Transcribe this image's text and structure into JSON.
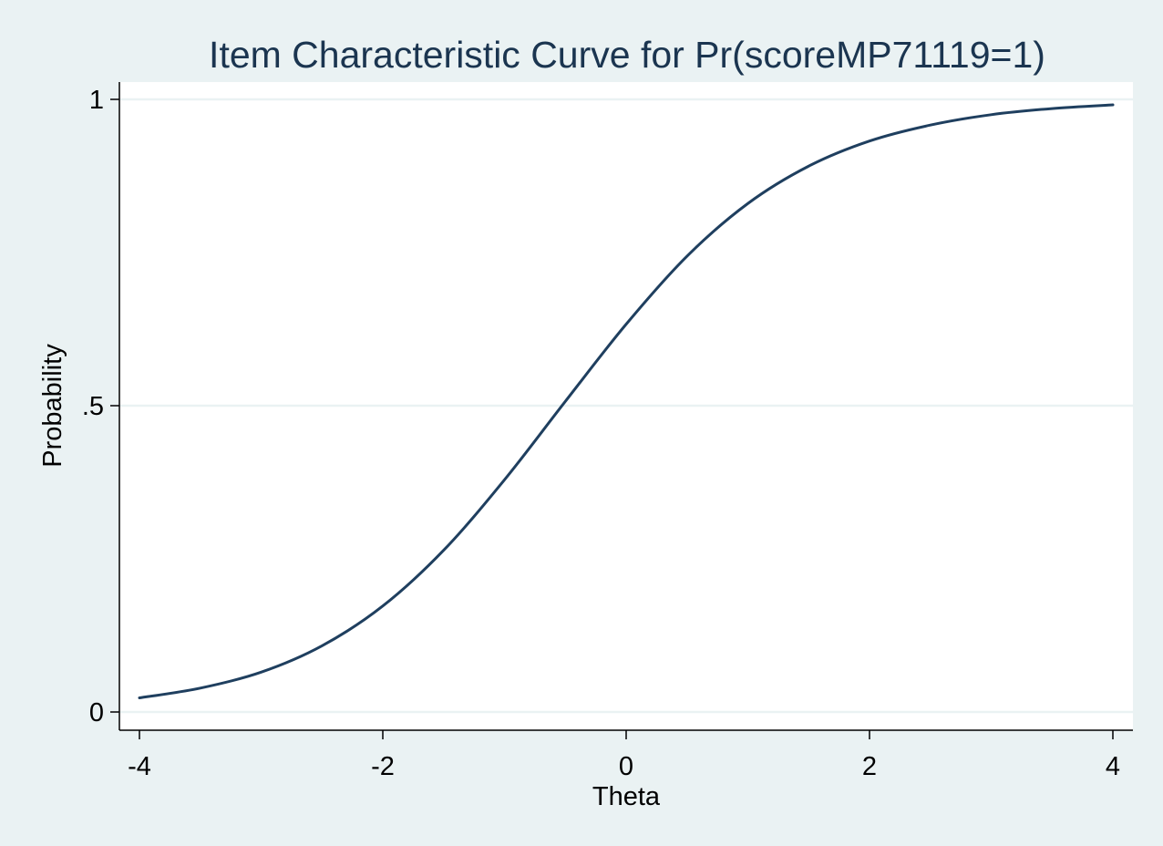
{
  "chart_data": {
    "type": "line",
    "title": "Item Characteristic Curve for Pr(scoreMP71119=1)",
    "xlabel": "Theta",
    "ylabel": "Probability",
    "xlim": [
      -4,
      4
    ],
    "ylim": [
      0,
      1
    ],
    "xticks": [
      {
        "value": -4,
        "label": "-4"
      },
      {
        "value": -2,
        "label": "-2"
      },
      {
        "value": 0,
        "label": "0"
      },
      {
        "value": 2,
        "label": "2"
      },
      {
        "value": 4,
        "label": "4"
      }
    ],
    "yticks": [
      {
        "value": 0,
        "label": "0"
      },
      {
        "value": 0.5,
        "label": ".5"
      },
      {
        "value": 1,
        "label": "1"
      }
    ],
    "grid": "horizontal",
    "series": [
      {
        "color": "#1f3f5f",
        "x": [
          -4,
          -3.5,
          -3,
          -2.5,
          -2,
          -1.5,
          -1,
          -0.5,
          0,
          0.5,
          1,
          1.5,
          2,
          2.5,
          3,
          3.5,
          4
        ],
        "y": [
          0.023,
          0.039,
          0.065,
          0.108,
          0.173,
          0.264,
          0.379,
          0.507,
          0.633,
          0.744,
          0.83,
          0.891,
          0.932,
          0.958,
          0.975,
          0.985,
          0.991
        ]
      }
    ]
  },
  "colors": {
    "background": "#eaf2f3",
    "plot_area": "#ffffff",
    "gridline": "#eaf2f3",
    "title": "#1b3550",
    "line": "#1f3f5f"
  }
}
